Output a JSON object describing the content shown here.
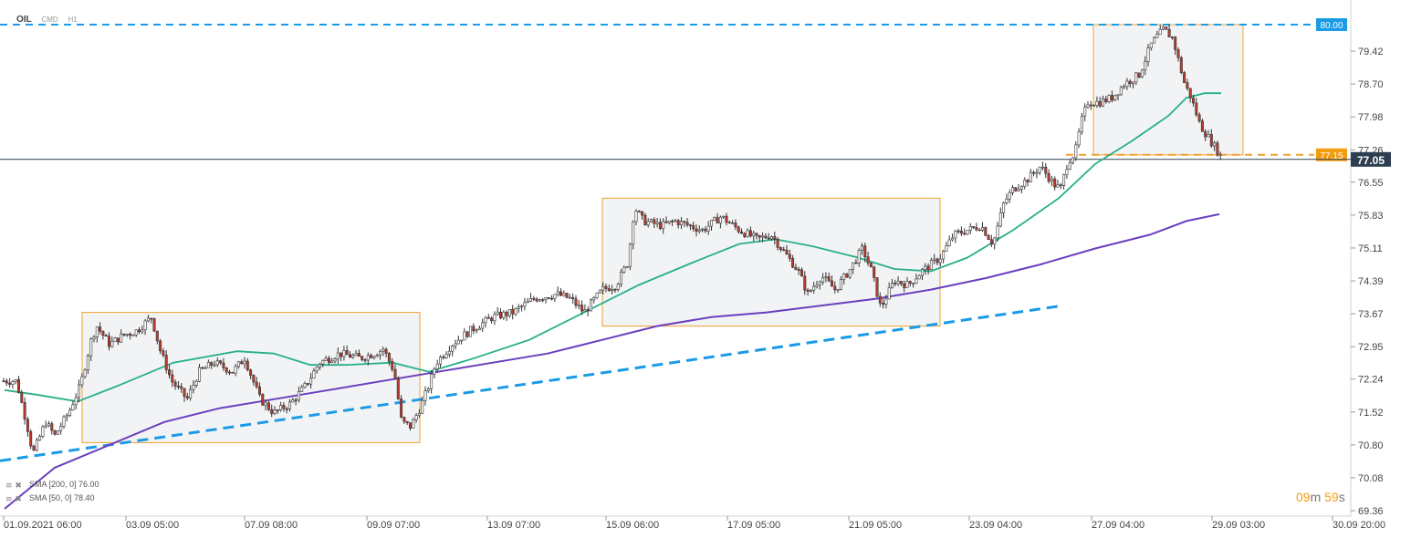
{
  "header": {
    "symbol": "OIL",
    "type": "CMD",
    "timeframe": "H1"
  },
  "legend": [
    {
      "text": "SMA [200, 0] 76.00",
      "color": "#6a3fbf"
    },
    {
      "text": "SMA [50, 0] 78.40",
      "color": "#27b08a"
    }
  ],
  "timer": {
    "minutes": "09",
    "m": "m",
    "seconds": "59",
    "s": "s"
  },
  "chart_data": {
    "type": "candlestick",
    "y_ticks": [
      "79.42",
      "78.70",
      "77.98",
      "77.26",
      "76.55",
      "75.83",
      "75.11",
      "74.39",
      "73.67",
      "72.95",
      "72.24",
      "71.52",
      "70.80",
      "70.08",
      "69.36"
    ],
    "x_labels": [
      "01.09.2021 06:00",
      "03.09 05:00",
      "07.09 08:00",
      "09.09 07:00",
      "13.09 07:00",
      "15.09 06:00",
      "17.09 05:00",
      "21.09 05:00",
      "23.09 04:00",
      "27.09 04:00",
      "29.09 03:00",
      "30.09 20:00"
    ],
    "price_labels": {
      "resistance": "80.00",
      "level": "77.15",
      "current": "77.05"
    },
    "colors": {
      "up": "#ffffff",
      "down": "#c0392b",
      "sma50": "#27b08a",
      "sma200": "#6a3fbf",
      "dashed": "#1a9be6",
      "box": "#f0a030",
      "current_bg": "#2c3e50"
    },
    "price_path": [
      [
        0,
        72.2
      ],
      [
        18,
        72.2
      ],
      [
        30,
        71.2
      ],
      [
        36,
        70.6
      ],
      [
        50,
        71.3
      ],
      [
        60,
        71.0
      ],
      [
        75,
        71.5
      ],
      [
        88,
        72.1
      ],
      [
        100,
        73.1
      ],
      [
        106,
        73.4
      ],
      [
        120,
        73.0
      ],
      [
        135,
        73.2
      ],
      [
        150,
        73.3
      ],
      [
        166,
        73.6
      ],
      [
        175,
        72.9
      ],
      [
        188,
        72.2
      ],
      [
        205,
        71.8
      ],
      [
        218,
        72.4
      ],
      [
        235,
        72.6
      ],
      [
        255,
        72.4
      ],
      [
        268,
        72.7
      ],
      [
        285,
        71.8
      ],
      [
        300,
        71.5
      ],
      [
        318,
        71.7
      ],
      [
        335,
        72.1
      ],
      [
        350,
        72.6
      ],
      [
        372,
        72.8
      ],
      [
        395,
        72.7
      ],
      [
        410,
        72.8
      ],
      [
        420,
        72.9
      ],
      [
        432,
        72.4
      ],
      [
        440,
        71.3
      ],
      [
        450,
        71.2
      ],
      [
        460,
        71.6
      ],
      [
        468,
        72.0
      ],
      [
        478,
        72.6
      ],
      [
        495,
        73.0
      ],
      [
        515,
        73.3
      ],
      [
        540,
        73.6
      ],
      [
        562,
        73.7
      ],
      [
        585,
        74.0
      ],
      [
        610,
        74.1
      ],
      [
        625,
        74.0
      ],
      [
        640,
        73.7
      ],
      [
        660,
        74.2
      ],
      [
        675,
        74.3
      ],
      [
        688,
        74.8
      ],
      [
        695,
        76.0
      ],
      [
        705,
        75.7
      ],
      [
        725,
        75.6
      ],
      [
        740,
        75.7
      ],
      [
        755,
        75.6
      ],
      [
        770,
        75.5
      ],
      [
        790,
        75.8
      ],
      [
        810,
        75.5
      ],
      [
        830,
        75.3
      ],
      [
        845,
        75.4
      ],
      [
        860,
        75.0
      ],
      [
        875,
        74.6
      ],
      [
        885,
        74.1
      ],
      [
        900,
        74.5
      ],
      [
        915,
        74.2
      ],
      [
        930,
        74.6
      ],
      [
        945,
        75.1
      ],
      [
        955,
        74.6
      ],
      [
        965,
        73.8
      ],
      [
        980,
        74.4
      ],
      [
        995,
        74.3
      ],
      [
        1010,
        74.6
      ],
      [
        1030,
        74.9
      ],
      [
        1045,
        75.4
      ],
      [
        1060,
        75.5
      ],
      [
        1075,
        75.6
      ],
      [
        1088,
        75.2
      ],
      [
        1100,
        76.1
      ],
      [
        1110,
        76.4
      ],
      [
        1125,
        76.6
      ],
      [
        1140,
        76.9
      ],
      [
        1155,
        76.5
      ],
      [
        1162,
        76.4
      ],
      [
        1170,
        77.0
      ],
      [
        1178,
        77.2
      ],
      [
        1185,
        77.9
      ],
      [
        1192,
        78.3
      ],
      [
        1205,
        78.3
      ],
      [
        1218,
        78.4
      ],
      [
        1232,
        78.7
      ],
      [
        1248,
        78.9
      ],
      [
        1262,
        79.6
      ],
      [
        1275,
        79.9
      ],
      [
        1285,
        79.7
      ],
      [
        1298,
        78.7
      ],
      [
        1305,
        78.4
      ],
      [
        1315,
        77.8
      ],
      [
        1325,
        77.5
      ],
      [
        1335,
        77.2
      ],
      [
        1340,
        77.05
      ]
    ],
    "sma50_path": [
      [
        5,
        72.0
      ],
      [
        40,
        71.9
      ],
      [
        85,
        71.75
      ],
      [
        130,
        72.1
      ],
      [
        190,
        72.6
      ],
      [
        260,
        72.85
      ],
      [
        300,
        72.8
      ],
      [
        340,
        72.55
      ],
      [
        380,
        72.55
      ],
      [
        430,
        72.6
      ],
      [
        470,
        72.4
      ],
      [
        520,
        72.7
      ],
      [
        580,
        73.1
      ],
      [
        640,
        73.7
      ],
      [
        700,
        74.3
      ],
      [
        760,
        74.8
      ],
      [
        810,
        75.2
      ],
      [
        850,
        75.3
      ],
      [
        890,
        75.15
      ],
      [
        940,
        74.9
      ],
      [
        980,
        74.65
      ],
      [
        1020,
        74.6
      ],
      [
        1060,
        74.9
      ],
      [
        1110,
        75.5
      ],
      [
        1160,
        76.2
      ],
      [
        1200,
        76.95
      ],
      [
        1240,
        77.45
      ],
      [
        1280,
        78.0
      ],
      [
        1300,
        78.4
      ],
      [
        1320,
        78.5
      ],
      [
        1338,
        78.5
      ]
    ],
    "sma200_path": [
      [
        5,
        69.4
      ],
      [
        60,
        70.3
      ],
      [
        120,
        70.8
      ],
      [
        180,
        71.3
      ],
      [
        240,
        71.6
      ],
      [
        300,
        71.8
      ],
      [
        360,
        72.0
      ],
      [
        420,
        72.2
      ],
      [
        480,
        72.4
      ],
      [
        540,
        72.6
      ],
      [
        600,
        72.8
      ],
      [
        660,
        73.1
      ],
      [
        720,
        73.4
      ],
      [
        780,
        73.6
      ],
      [
        840,
        73.7
      ],
      [
        900,
        73.85
      ],
      [
        960,
        74.0
      ],
      [
        1020,
        74.2
      ],
      [
        1080,
        74.45
      ],
      [
        1140,
        74.75
      ],
      [
        1200,
        75.1
      ],
      [
        1260,
        75.4
      ],
      [
        1300,
        75.7
      ],
      [
        1336,
        75.85
      ]
    ],
    "support_line": [
      [
        0,
        70.45
      ],
      [
        1165,
        73.85
      ]
    ],
    "resistance_level": 80.0,
    "level_77": 77.15,
    "current_price": 77.05,
    "boxes": [
      {
        "x0": 90,
        "x1": 460,
        "y0": 70.85,
        "y1": 73.7
      },
      {
        "x0": 660,
        "x1": 1030,
        "y0": 73.4,
        "y1": 76.2
      },
      {
        "x0": 1198,
        "x1": 1362,
        "y0": 77.15,
        "y1": 80.0
      }
    ],
    "ylim": [
      69.36,
      80.14
    ]
  }
}
